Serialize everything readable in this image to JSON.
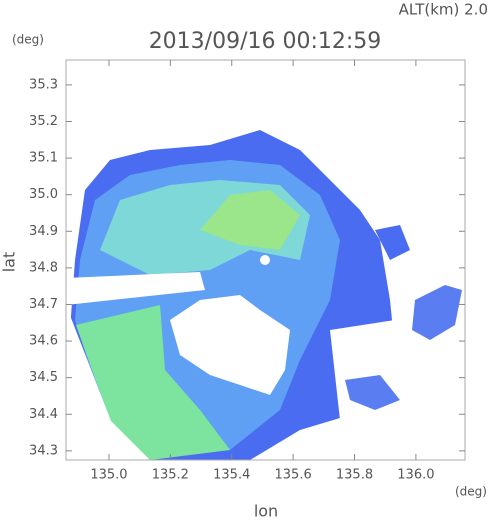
{
  "chart_data": {
    "type": "map",
    "title": "2013/09/16 00:12:59",
    "altitude_label": "ALT(km) 2.0",
    "y_unit": "(deg)",
    "x_unit": "(deg)",
    "xlabel": "lon",
    "ylabel": "lat",
    "xlim": [
      134.86,
      136.16
    ],
    "ylim": [
      34.275,
      35.368
    ],
    "xticks": [
      {
        "value": 135,
        "label": "135.0"
      },
      135.2,
      135.4,
      135.6,
      135.8,
      {
        "value": 136,
        "label": "136.0"
      }
    ],
    "yticks": [
      34.3,
      34.4,
      34.5,
      34.6,
      34.7,
      34.8,
      34.9,
      {
        "value": 35,
        "label": "35.0"
      },
      35.1,
      35.2,
      35.3
    ]
  }
}
